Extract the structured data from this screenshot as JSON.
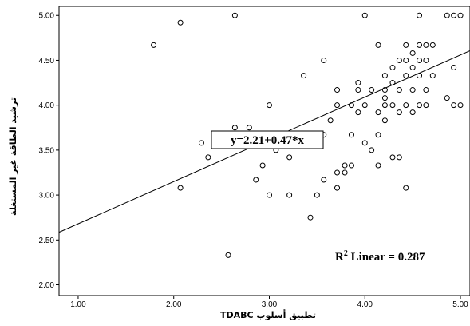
{
  "chart_data": {
    "type": "scatter",
    "xlabel": "تطبيق أسلوب TDABC",
    "ylabel": "ترشيد الطاقة غير المستغلة",
    "xlim": [
      0.8,
      5.1
    ],
    "ylim": [
      1.88,
      5.1
    ],
    "x_ticks": [
      "1.00",
      "2.00",
      "3.00",
      "4.00",
      "5.00"
    ],
    "y_ticks": [
      "2.00",
      "2.50",
      "3.00",
      "3.50",
      "4.00",
      "4.50",
      "5.00"
    ],
    "fit_line": {
      "intercept": 2.21,
      "slope": 0.47
    },
    "equation_label": "y=2.21+0.47*x",
    "r2_label": {
      "prefix": "R",
      "sup": "2",
      "text": " Linear = 0.287"
    },
    "marker_color": "#000000",
    "series": [
      {
        "points": [
          [
            1.79,
            4.67
          ],
          [
            2.07,
            4.92
          ],
          [
            2.07,
            3.08
          ],
          [
            2.29,
            3.58
          ],
          [
            2.36,
            3.42
          ],
          [
            2.57,
            2.33
          ],
          [
            2.64,
            5.0
          ],
          [
            2.64,
            3.75
          ],
          [
            2.79,
            3.75
          ],
          [
            2.86,
            3.17
          ],
          [
            2.93,
            3.33
          ],
          [
            3.0,
            4.0
          ],
          [
            3.0,
            3.0
          ],
          [
            3.07,
            3.5
          ],
          [
            3.14,
            3.58
          ],
          [
            3.21,
            3.42
          ],
          [
            3.21,
            3.0
          ],
          [
            3.36,
            4.33
          ],
          [
            3.43,
            2.75
          ],
          [
            3.5,
            3.0
          ],
          [
            3.57,
            4.5
          ],
          [
            3.57,
            3.17
          ],
          [
            3.64,
            3.83
          ],
          [
            3.71,
            4.17
          ],
          [
            3.71,
            4.0
          ],
          [
            3.71,
            3.25
          ],
          [
            3.71,
            3.08
          ],
          [
            3.79,
            3.25
          ],
          [
            3.79,
            3.33
          ],
          [
            3.86,
            3.67
          ],
          [
            3.86,
            4.0
          ],
          [
            3.86,
            3.33
          ],
          [
            3.93,
            4.25
          ],
          [
            3.93,
            4.17
          ],
          [
            3.93,
            3.92
          ],
          [
            4.0,
            5.0
          ],
          [
            4.0,
            4.0
          ],
          [
            4.0,
            3.58
          ],
          [
            4.07,
            4.17
          ],
          [
            4.07,
            3.5
          ],
          [
            4.14,
            4.67
          ],
          [
            4.14,
            3.92
          ],
          [
            4.14,
            3.67
          ],
          [
            4.14,
            3.33
          ],
          [
            4.21,
            4.33
          ],
          [
            4.21,
            4.17
          ],
          [
            4.21,
            4.0
          ],
          [
            4.21,
            3.83
          ],
          [
            4.29,
            4.42
          ],
          [
            4.29,
            4.25
          ],
          [
            4.29,
            4.0
          ],
          [
            4.29,
            3.42
          ],
          [
            4.36,
            4.5
          ],
          [
            4.36,
            4.17
          ],
          [
            4.36,
            3.42
          ],
          [
            4.43,
            4.67
          ],
          [
            4.43,
            4.5
          ],
          [
            4.43,
            4.33
          ],
          [
            4.43,
            4.0
          ],
          [
            4.43,
            3.08
          ],
          [
            4.5,
            4.58
          ],
          [
            4.5,
            4.42
          ],
          [
            4.5,
            4.17
          ],
          [
            4.5,
            3.92
          ],
          [
            4.57,
            5.0
          ],
          [
            4.57,
            4.67
          ],
          [
            4.57,
            4.5
          ],
          [
            4.57,
            4.33
          ],
          [
            4.57,
            4.0
          ],
          [
            4.64,
            4.67
          ],
          [
            4.64,
            4.5
          ],
          [
            4.64,
            4.17
          ],
          [
            4.64,
            4.0
          ],
          [
            4.71,
            4.67
          ],
          [
            4.71,
            4.33
          ],
          [
            4.86,
            5.0
          ],
          [
            4.86,
            4.08
          ],
          [
            4.93,
            5.0
          ],
          [
            4.93,
            4.42
          ],
          [
            4.93,
            4.0
          ],
          [
            5.0,
            5.0
          ],
          [
            5.0,
            4.0
          ],
          [
            4.36,
            3.92
          ],
          [
            4.21,
            4.08
          ],
          [
            3.57,
            3.67
          ]
        ]
      }
    ]
  }
}
